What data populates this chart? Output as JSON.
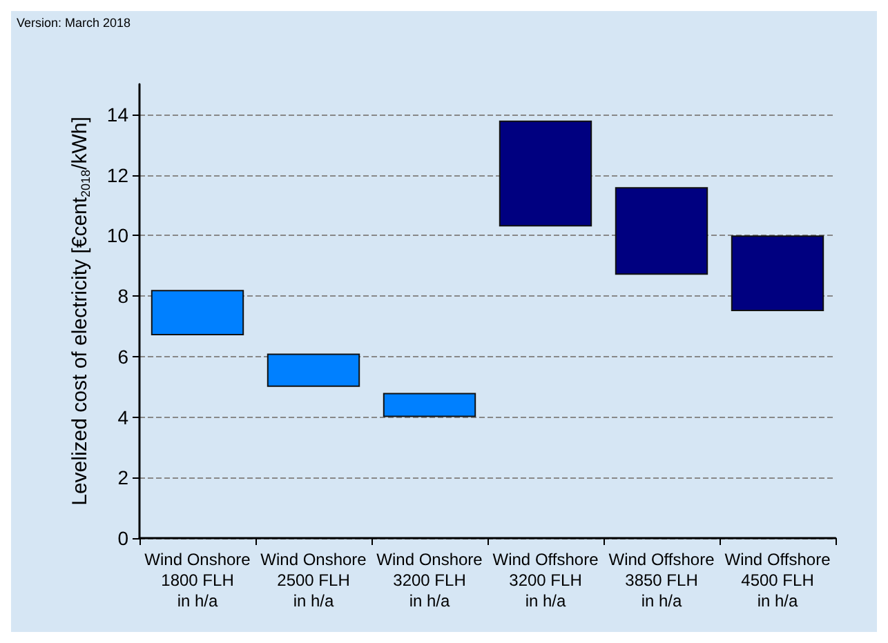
{
  "chart_data": {
    "type": "bar",
    "ylabel": "Levelized cost of electricity [€cent$_{2018}$/kWh]",
    "annotations": [
      "Version: March 2018"
    ],
    "categories": [
      "Wind Onshore\n1800 FLH\nin h/a",
      "Wind Onshore\n2500 FLH\nin h/a",
      "Wind Onshore\n3200 FLH\nin h/a",
      "Wind Offshore\n3200 FLH\nin h/a",
      "Wind Offshore\n3850 FLH\nin h/a",
      "Wind Offshore\n4500 FLH\nin h/a"
    ],
    "base": [
      6.7,
      5.0,
      4.0,
      10.3,
      8.7,
      7.5
    ],
    "values": [
      1.5,
      1.1,
      0.8,
      3.5,
      2.9,
      2.5
    ],
    "colors": [
      "#0080ff",
      "#0080ff",
      "#0080ff",
      "#000080",
      "#000080",
      "#000080"
    ],
    "ylim": [
      0,
      15
    ],
    "yticks": [
      0,
      2,
      4,
      6,
      8,
      10,
      12,
      14
    ],
    "grid": "y"
  }
}
